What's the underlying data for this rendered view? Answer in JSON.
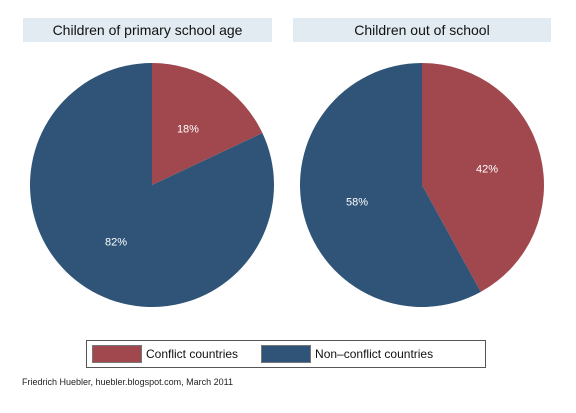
{
  "colors": {
    "conflict": "#a0484e",
    "non_conflict": "#2f5477",
    "panel_bg": "#e1ebf1"
  },
  "chart_data": [
    {
      "type": "pie",
      "title": "Children of primary school age",
      "slices": [
        {
          "label": "Conflict countries",
          "value": 18,
          "text": "18%"
        },
        {
          "label": "Non–conflict countries",
          "value": 82,
          "text": "82%"
        }
      ]
    },
    {
      "type": "pie",
      "title": "Children out of school",
      "slices": [
        {
          "label": "Conflict countries",
          "value": 42,
          "text": "42%"
        },
        {
          "label": "Non–conflict countries",
          "value": 58,
          "text": "58%"
        }
      ]
    }
  ],
  "legend": {
    "position": "bottom",
    "items": [
      "Conflict countries",
      "Non–conflict countries"
    ]
  },
  "source": "Friedrich Huebler, huebler.blogspot.com, March 2011"
}
